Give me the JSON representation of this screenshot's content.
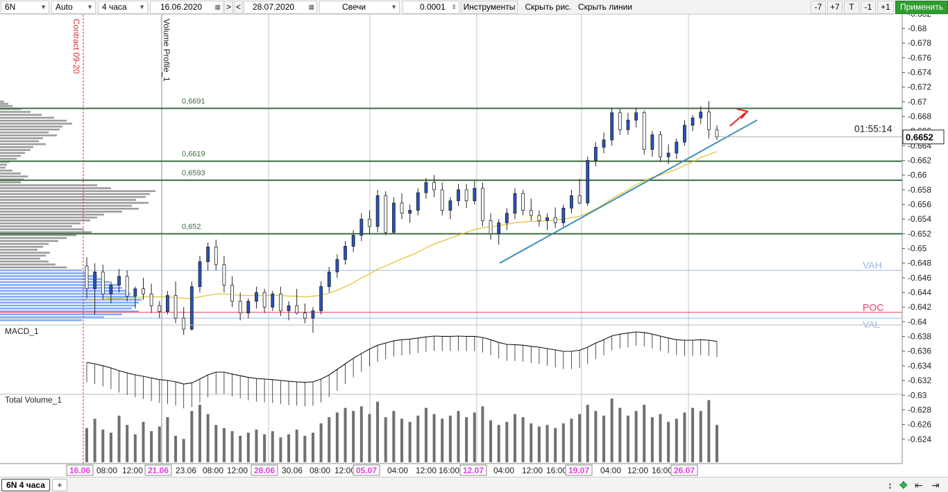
{
  "toolbar": {
    "symbol": "6N",
    "scale_mode": "Auto",
    "timeframe": "4 часа",
    "date_from": "16.06.2020",
    "nav_next": ">",
    "nav_prev": "<",
    "date_to": "28.07.2020",
    "chart_type": "Свечи",
    "tick_step": "0.0001",
    "tools_label": "Инструменты",
    "hide_drawings": "Скрыть рис.",
    "hide_lines": "Скрыть линии",
    "minus7": "-7",
    "plus7": "+7",
    "t_label": "T",
    "minus1": "-1",
    "plus1": "+1",
    "apply": "Применить"
  },
  "bottom": {
    "active_tab": "6N 4 часа",
    "add_tab": "+",
    "icons": [
      "resize-vertical-icon",
      "expand-icon",
      "back-arrow-icon",
      "forward-arrow-icon"
    ]
  },
  "colors": {
    "bull_candle": "#2a52be",
    "bear_candle": "#ffffff",
    "level_line": "#3d6b3d",
    "ma_line": "#e3c02a",
    "trendline": "#3a8fb5",
    "profile_gray": "#8a8a8a",
    "profile_blue": "#6b9bff",
    "vah_val": "#9bb5ea",
    "poc": "#e04060",
    "date_label": "#e040e0",
    "arrow": "#e02020",
    "volume_bar": "#707070"
  },
  "chart_data": {
    "type": "candlestick",
    "instrument": "6N",
    "timeframe": "4 часа",
    "price_axis_ticks": [
      "0.682",
      "0.68",
      "0.678",
      "0.676",
      "0.674",
      "0.672",
      "0.67",
      "0.668",
      "0.666",
      "0.664",
      "0.662",
      "0.66",
      "0.658",
      "0.656",
      "0.654",
      "0.652",
      "0.65",
      "0.648",
      "0.646",
      "0.644",
      "0.642",
      "0.64",
      "0.638",
      "0.636",
      "0.634",
      "0.632",
      "0.63",
      "0.628",
      "0.626",
      "0.624"
    ],
    "ylim": [
      0.6236,
      0.6826
    ],
    "last_price": "0.6652",
    "timer": "01:55:14",
    "time_axis_labels": [
      {
        "t": "16.06",
        "highlight": true
      },
      {
        "t": "08:00",
        "highlight": false
      },
      {
        "t": "12:00",
        "highlight": false
      },
      {
        "t": "21.06",
        "highlight": true
      },
      {
        "t": "23.06",
        "highlight": false
      },
      {
        "t": "08:00",
        "highlight": false
      },
      {
        "t": "12:00",
        "highlight": false
      },
      {
        "t": "28.06",
        "highlight": true
      },
      {
        "t": "30.06",
        "highlight": false
      },
      {
        "t": "08:00",
        "highlight": false
      },
      {
        "t": "12:00",
        "highlight": false
      },
      {
        "t": "05.07",
        "highlight": true
      },
      {
        "t": "04:00",
        "highlight": false
      },
      {
        "t": "12:00",
        "highlight": false
      },
      {
        "t": "16:00",
        "highlight": false
      },
      {
        "t": "12.07",
        "highlight": true
      },
      {
        "t": "04:00",
        "highlight": false
      },
      {
        "t": "12:00",
        "highlight": false
      },
      {
        "t": "16:00",
        "highlight": false
      },
      {
        "t": "19.07",
        "highlight": true
      },
      {
        "t": "04:00",
        "highlight": false
      },
      {
        "t": "12:00",
        "highlight": false
      },
      {
        "t": "16:00",
        "highlight": false
      },
      {
        "t": "26.07",
        "highlight": true
      }
    ],
    "levels": [
      {
        "label": "0,6691",
        "price": 0.6691
      },
      {
        "label": "0,6619",
        "price": 0.6619
      },
      {
        "label": "0,6593",
        "price": 0.6593
      },
      {
        "label": "0,652",
        "price": 0.652
      }
    ],
    "profile_levels": [
      {
        "label": "VAH",
        "price": 0.647
      },
      {
        "label": "POC",
        "price": 0.6413
      },
      {
        "label": "VAL",
        "price": 0.6405
      }
    ],
    "vertical_labels": [
      "Contract 09-20",
      "Volume Profile_1"
    ],
    "trendline": {
      "from": [
        0.0,
        0.648
      ],
      "to": [
        1.0,
        0.6675
      ]
    },
    "panels": {
      "macd": "MACD_1",
      "volume": "Total Volume_1"
    },
    "candles": [
      {
        "o": 0.6476,
        "h": 0.6488,
        "l": 0.6432,
        "c": 0.6445
      },
      {
        "o": 0.6445,
        "h": 0.648,
        "l": 0.641,
        "c": 0.6468
      },
      {
        "o": 0.6468,
        "h": 0.6478,
        "l": 0.643,
        "c": 0.6438
      },
      {
        "o": 0.6438,
        "h": 0.6455,
        "l": 0.6425,
        "c": 0.645
      },
      {
        "o": 0.645,
        "h": 0.6472,
        "l": 0.644,
        "c": 0.6462
      },
      {
        "o": 0.6462,
        "h": 0.647,
        "l": 0.6428,
        "c": 0.6435
      },
      {
        "o": 0.6435,
        "h": 0.6448,
        "l": 0.6418,
        "c": 0.6445
      },
      {
        "o": 0.6445,
        "h": 0.646,
        "l": 0.643,
        "c": 0.6438
      },
      {
        "o": 0.6438,
        "h": 0.6452,
        "l": 0.6412,
        "c": 0.6422
      },
      {
        "o": 0.6422,
        "h": 0.6428,
        "l": 0.6405,
        "c": 0.6414
      },
      {
        "o": 0.6414,
        "h": 0.6442,
        "l": 0.641,
        "c": 0.6436
      },
      {
        "o": 0.6436,
        "h": 0.6455,
        "l": 0.6398,
        "c": 0.6405
      },
      {
        "o": 0.6405,
        "h": 0.642,
        "l": 0.6382,
        "c": 0.639
      },
      {
        "o": 0.639,
        "h": 0.6455,
        "l": 0.6388,
        "c": 0.6448
      },
      {
        "o": 0.6448,
        "h": 0.649,
        "l": 0.644,
        "c": 0.6482
      },
      {
        "o": 0.6482,
        "h": 0.6508,
        "l": 0.647,
        "c": 0.6502
      },
      {
        "o": 0.6502,
        "h": 0.6512,
        "l": 0.647,
        "c": 0.6478
      },
      {
        "o": 0.6478,
        "h": 0.649,
        "l": 0.644,
        "c": 0.645
      },
      {
        "o": 0.645,
        "h": 0.6462,
        "l": 0.642,
        "c": 0.6428
      },
      {
        "o": 0.6428,
        "h": 0.644,
        "l": 0.6402,
        "c": 0.6412
      },
      {
        "o": 0.6412,
        "h": 0.6432,
        "l": 0.6405,
        "c": 0.6428
      },
      {
        "o": 0.6428,
        "h": 0.6448,
        "l": 0.6418,
        "c": 0.644
      },
      {
        "o": 0.644,
        "h": 0.6445,
        "l": 0.6412,
        "c": 0.642
      },
      {
        "o": 0.642,
        "h": 0.6442,
        "l": 0.6415,
        "c": 0.6438
      },
      {
        "o": 0.6438,
        "h": 0.6448,
        "l": 0.6408,
        "c": 0.6415
      },
      {
        "o": 0.6415,
        "h": 0.6428,
        "l": 0.6402,
        "c": 0.6422
      },
      {
        "o": 0.6422,
        "h": 0.6445,
        "l": 0.641,
        "c": 0.6412
      },
      {
        "o": 0.6412,
        "h": 0.6425,
        "l": 0.6398,
        "c": 0.6405
      },
      {
        "o": 0.6405,
        "h": 0.642,
        "l": 0.6385,
        "c": 0.6415
      },
      {
        "o": 0.6415,
        "h": 0.6455,
        "l": 0.641,
        "c": 0.6448
      },
      {
        "o": 0.6448,
        "h": 0.6475,
        "l": 0.644,
        "c": 0.6468
      },
      {
        "o": 0.6468,
        "h": 0.6492,
        "l": 0.646,
        "c": 0.6485
      },
      {
        "o": 0.6485,
        "h": 0.651,
        "l": 0.6478,
        "c": 0.6503
      },
      {
        "o": 0.6503,
        "h": 0.6525,
        "l": 0.6495,
        "c": 0.6518
      },
      {
        "o": 0.6518,
        "h": 0.6548,
        "l": 0.651,
        "c": 0.654
      },
      {
        "o": 0.654,
        "h": 0.6552,
        "l": 0.652,
        "c": 0.653
      },
      {
        "o": 0.653,
        "h": 0.658,
        "l": 0.6522,
        "c": 0.6572
      },
      {
        "o": 0.6572,
        "h": 0.6578,
        "l": 0.6518,
        "c": 0.6522
      },
      {
        "o": 0.6522,
        "h": 0.657,
        "l": 0.652,
        "c": 0.6562
      },
      {
        "o": 0.6562,
        "h": 0.6575,
        "l": 0.654,
        "c": 0.6548
      },
      {
        "o": 0.6548,
        "h": 0.656,
        "l": 0.6535,
        "c": 0.6552
      },
      {
        "o": 0.6552,
        "h": 0.6582,
        "l": 0.6545,
        "c": 0.6576
      },
      {
        "o": 0.6576,
        "h": 0.6596,
        "l": 0.6568,
        "c": 0.659
      },
      {
        "o": 0.659,
        "h": 0.66,
        "l": 0.657,
        "c": 0.658
      },
      {
        "o": 0.658,
        "h": 0.659,
        "l": 0.6545,
        "c": 0.6552
      },
      {
        "o": 0.6552,
        "h": 0.657,
        "l": 0.654,
        "c": 0.6565
      },
      {
        "o": 0.6565,
        "h": 0.6588,
        "l": 0.6558,
        "c": 0.658
      },
      {
        "o": 0.658,
        "h": 0.6588,
        "l": 0.6555,
        "c": 0.6565
      },
      {
        "o": 0.6565,
        "h": 0.6592,
        "l": 0.656,
        "c": 0.6582
      },
      {
        "o": 0.6582,
        "h": 0.659,
        "l": 0.653,
        "c": 0.6538
      },
      {
        "o": 0.6538,
        "h": 0.6548,
        "l": 0.6512,
        "c": 0.652
      },
      {
        "o": 0.652,
        "h": 0.654,
        "l": 0.6505,
        "c": 0.6535
      },
      {
        "o": 0.6535,
        "h": 0.6555,
        "l": 0.6525,
        "c": 0.6548
      },
      {
        "o": 0.6548,
        "h": 0.6582,
        "l": 0.654,
        "c": 0.6575
      },
      {
        "o": 0.6575,
        "h": 0.658,
        "l": 0.6545,
        "c": 0.6552
      },
      {
        "o": 0.6552,
        "h": 0.6568,
        "l": 0.6538,
        "c": 0.6545
      },
      {
        "o": 0.6545,
        "h": 0.6552,
        "l": 0.653,
        "c": 0.6538
      },
      {
        "o": 0.6538,
        "h": 0.6548,
        "l": 0.6525,
        "c": 0.6542
      },
      {
        "o": 0.6542,
        "h": 0.6556,
        "l": 0.6528,
        "c": 0.6535
      },
      {
        "o": 0.6535,
        "h": 0.656,
        "l": 0.653,
        "c": 0.6555
      },
      {
        "o": 0.6555,
        "h": 0.658,
        "l": 0.6548,
        "c": 0.6572
      },
      {
        "o": 0.6572,
        "h": 0.6595,
        "l": 0.656,
        "c": 0.6562
      },
      {
        "o": 0.6562,
        "h": 0.6625,
        "l": 0.6558,
        "c": 0.662
      },
      {
        "o": 0.662,
        "h": 0.6645,
        "l": 0.6612,
        "c": 0.6638
      },
      {
        "o": 0.6638,
        "h": 0.6658,
        "l": 0.663,
        "c": 0.6648
      },
      {
        "o": 0.6648,
        "h": 0.6692,
        "l": 0.664,
        "c": 0.6685
      },
      {
        "o": 0.6685,
        "h": 0.669,
        "l": 0.6655,
        "c": 0.6662
      },
      {
        "o": 0.6662,
        "h": 0.6685,
        "l": 0.6655,
        "c": 0.6675
      },
      {
        "o": 0.6675,
        "h": 0.6692,
        "l": 0.6665,
        "c": 0.6685
      },
      {
        "o": 0.6685,
        "h": 0.6688,
        "l": 0.6628,
        "c": 0.6635
      },
      {
        "o": 0.6635,
        "h": 0.666,
        "l": 0.6625,
        "c": 0.6655
      },
      {
        "o": 0.6655,
        "h": 0.666,
        "l": 0.6618,
        "c": 0.6625
      },
      {
        "o": 0.6625,
        "h": 0.6642,
        "l": 0.6615,
        "c": 0.663
      },
      {
        "o": 0.663,
        "h": 0.665,
        "l": 0.6622,
        "c": 0.6645
      },
      {
        "o": 0.6645,
        "h": 0.6675,
        "l": 0.664,
        "c": 0.6668
      },
      {
        "o": 0.6668,
        "h": 0.6682,
        "l": 0.666,
        "c": 0.6678
      },
      {
        "o": 0.6678,
        "h": 0.6694,
        "l": 0.667,
        "c": 0.6686
      },
      {
        "o": 0.6686,
        "h": 0.6701,
        "l": 0.665,
        "c": 0.6662
      },
      {
        "o": 0.6662,
        "h": 0.6668,
        "l": 0.6648,
        "c": 0.6652
      }
    ],
    "ma": [
      0.643,
      0.643,
      0.6431,
      0.6432,
      0.6432,
      0.6433,
      0.6433,
      0.6434,
      0.6434,
      0.6434,
      0.6434,
      0.6433,
      0.6432,
      0.6432,
      0.6434,
      0.6436,
      0.6438,
      0.6438,
      0.6437,
      0.6436,
      0.6436,
      0.6436,
      0.6436,
      0.6436,
      0.6436,
      0.6435,
      0.6435,
      0.6434,
      0.6435,
      0.6436,
      0.6439,
      0.6443,
      0.6448,
      0.6453,
      0.646,
      0.6465,
      0.6472,
      0.6476,
      0.6481,
      0.6486,
      0.649,
      0.6495,
      0.6501,
      0.6506,
      0.651,
      0.6514,
      0.6518,
      0.6522,
      0.6526,
      0.6528,
      0.653,
      0.6531,
      0.6533,
      0.6535,
      0.6536,
      0.6537,
      0.6537,
      0.6538,
      0.6539,
      0.654,
      0.6542,
      0.6544,
      0.6548,
      0.6554,
      0.656,
      0.6568,
      0.6574,
      0.658,
      0.6587,
      0.6592,
      0.6597,
      0.66,
      0.6604,
      0.6608,
      0.6613,
      0.6618,
      0.6624,
      0.6628,
      0.6632
    ],
    "volume": [
      44,
      56,
      42,
      38,
      60,
      48,
      36,
      52,
      40,
      46,
      58,
      34,
      30,
      66,
      74,
      62,
      48,
      44,
      40,
      34,
      38,
      42,
      36,
      40,
      32,
      36,
      42,
      34,
      38,
      50,
      58,
      64,
      70,
      66,
      72,
      62,
      78,
      58,
      66,
      56,
      52,
      60,
      70,
      62,
      56,
      60,
      66,
      58,
      64,
      72,
      54,
      48,
      52,
      62,
      58,
      50,
      46,
      48,
      44,
      50,
      56,
      62,
      74,
      66,
      60,
      82,
      70,
      60,
      66,
      74,
      58,
      62,
      52,
      56,
      64,
      70,
      66,
      80,
      48
    ],
    "macd": [
      -0.1,
      -0.15,
      -0.22,
      -0.3,
      -0.4,
      -0.48,
      -0.55,
      -0.6,
      -0.66,
      -0.72,
      -0.75,
      -0.8,
      -0.88,
      -0.84,
      -0.7,
      -0.55,
      -0.45,
      -0.45,
      -0.52,
      -0.58,
      -0.64,
      -0.68,
      -0.7,
      -0.72,
      -0.75,
      -0.78,
      -0.8,
      -0.82,
      -0.8,
      -0.7,
      -0.55,
      -0.35,
      -0.15,
      0.05,
      0.22,
      0.38,
      0.52,
      0.6,
      0.68,
      0.72,
      0.74,
      0.78,
      0.82,
      0.85,
      0.84,
      0.84,
      0.85,
      0.84,
      0.84,
      0.8,
      0.72,
      0.62,
      0.55,
      0.54,
      0.52,
      0.48,
      0.45,
      0.4,
      0.35,
      0.3,
      0.3,
      0.34,
      0.45,
      0.6,
      0.72,
      0.86,
      0.92,
      0.96,
      1.0,
      0.98,
      0.92,
      0.85,
      0.78,
      0.72,
      0.7,
      0.7,
      0.72,
      0.7,
      0.66
    ],
    "profile": [
      {
        "p": 0.67,
        "v": 6
      },
      {
        "p": 0.6697,
        "v": 12
      },
      {
        "p": 0.6694,
        "v": 18
      },
      {
        "p": 0.669,
        "v": 30
      },
      {
        "p": 0.6686,
        "v": 44
      },
      {
        "p": 0.6682,
        "v": 60
      },
      {
        "p": 0.6678,
        "v": 78
      },
      {
        "p": 0.6674,
        "v": 96
      },
      {
        "p": 0.667,
        "v": 104
      },
      {
        "p": 0.6666,
        "v": 90
      },
      {
        "p": 0.6662,
        "v": 86
      },
      {
        "p": 0.6658,
        "v": 70
      },
      {
        "p": 0.6654,
        "v": 82
      },
      {
        "p": 0.665,
        "v": 62
      },
      {
        "p": 0.6646,
        "v": 56
      },
      {
        "p": 0.6642,
        "v": 66
      },
      {
        "p": 0.6638,
        "v": 48
      },
      {
        "p": 0.6634,
        "v": 44
      },
      {
        "p": 0.663,
        "v": 36
      },
      {
        "p": 0.6626,
        "v": 30
      },
      {
        "p": 0.6622,
        "v": 24
      },
      {
        "p": 0.6618,
        "v": 14
      },
      {
        "p": 0.6614,
        "v": 10
      },
      {
        "p": 0.661,
        "v": 8
      },
      {
        "p": 0.6606,
        "v": 18
      },
      {
        "p": 0.6602,
        "v": 30
      },
      {
        "p": 0.6598,
        "v": 40
      },
      {
        "p": 0.6594,
        "v": 34
      },
      {
        "p": 0.659,
        "v": 30
      },
      {
        "p": 0.6586,
        "v": 140
      },
      {
        "p": 0.6582,
        "v": 160
      },
      {
        "p": 0.6578,
        "v": 224
      },
      {
        "p": 0.6574,
        "v": 216
      },
      {
        "p": 0.657,
        "v": 210
      },
      {
        "p": 0.6566,
        "v": 196
      },
      {
        "p": 0.6562,
        "v": 214
      },
      {
        "p": 0.6558,
        "v": 190
      },
      {
        "p": 0.6554,
        "v": 200
      },
      {
        "p": 0.655,
        "v": 176
      },
      {
        "p": 0.6546,
        "v": 150
      },
      {
        "p": 0.6542,
        "v": 140
      },
      {
        "p": 0.6538,
        "v": 130
      },
      {
        "p": 0.6534,
        "v": 116
      },
      {
        "p": 0.653,
        "v": 104
      },
      {
        "p": 0.6526,
        "v": 120
      },
      {
        "p": 0.6522,
        "v": 132
      },
      {
        "p": 0.6518,
        "v": 110
      },
      {
        "p": 0.6514,
        "v": 96
      },
      {
        "p": 0.651,
        "v": 84
      },
      {
        "p": 0.6506,
        "v": 70
      },
      {
        "p": 0.6502,
        "v": 62
      },
      {
        "p": 0.6498,
        "v": 54
      },
      {
        "p": 0.6494,
        "v": 72
      },
      {
        "p": 0.649,
        "v": 66
      },
      {
        "p": 0.6486,
        "v": 58
      },
      {
        "p": 0.6482,
        "v": 70
      },
      {
        "p": 0.6478,
        "v": 80
      },
      {
        "p": 0.6474,
        "v": 96
      },
      {
        "p": 0.647,
        "v": 118
      },
      {
        "p": 0.6466,
        "v": 126
      },
      {
        "p": 0.6462,
        "v": 140
      },
      {
        "p": 0.6458,
        "v": 150
      },
      {
        "p": 0.6454,
        "v": 158
      },
      {
        "p": 0.645,
        "v": 170
      },
      {
        "p": 0.6446,
        "v": 176
      },
      {
        "p": 0.6442,
        "v": 182
      },
      {
        "p": 0.6438,
        "v": 188
      },
      {
        "p": 0.6434,
        "v": 196
      },
      {
        "p": 0.643,
        "v": 204
      },
      {
        "p": 0.6426,
        "v": 200
      },
      {
        "p": 0.6422,
        "v": 196
      },
      {
        "p": 0.6418,
        "v": 190
      },
      {
        "p": 0.6414,
        "v": 200
      },
      {
        "p": 0.641,
        "v": 176
      },
      {
        "p": 0.6406,
        "v": 150
      },
      {
        "p": 0.6402,
        "v": 118
      }
    ]
  }
}
